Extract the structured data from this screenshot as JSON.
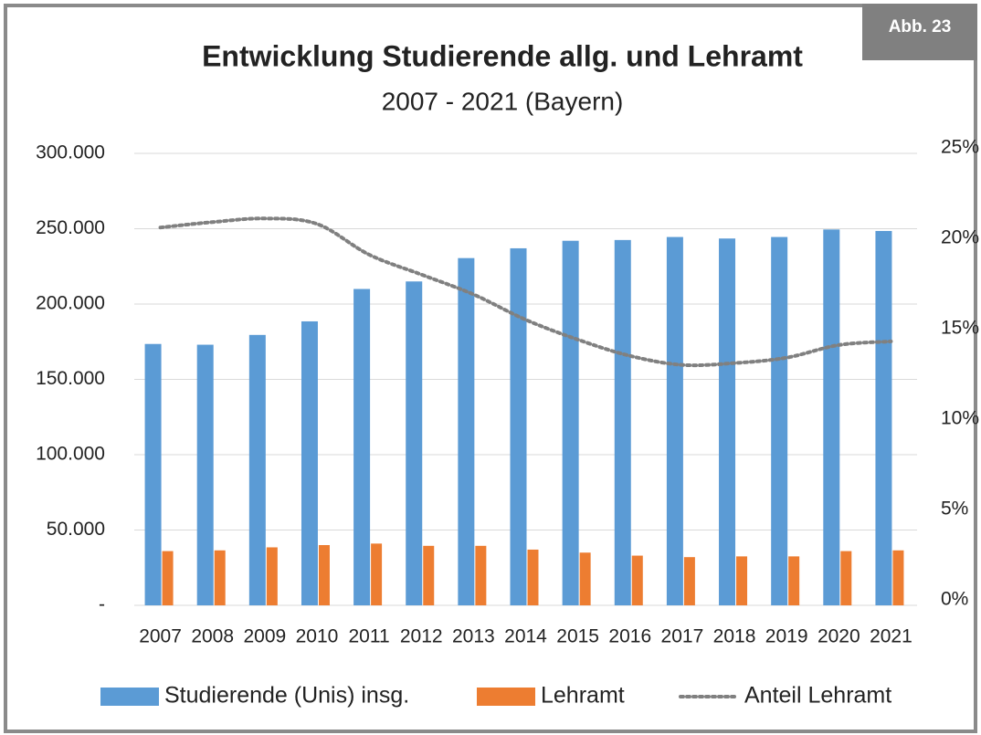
{
  "chart_data": {
    "type": "bar",
    "badge": "Abb. 23",
    "title": "Entwicklung Studierende allg. und Lehramt",
    "subtitle": "2007 - 2021 (Bayern)",
    "categories": [
      "2007",
      "2008",
      "2009",
      "2010",
      "2011",
      "2012",
      "2013",
      "2014",
      "2015",
      "2016",
      "2017",
      "2018",
      "2019",
      "2020",
      "2021"
    ],
    "series": [
      {
        "name": "Studierende (Unis) insg.",
        "color": "#5b9bd5",
        "type": "bar",
        "values": [
          173500,
          173000,
          179500,
          188500,
          210000,
          215000,
          230500,
          237000,
          242000,
          242500,
          244500,
          243500,
          244500,
          249500,
          248500
        ]
      },
      {
        "name": "Lehramt",
        "color": "#ed7d31",
        "type": "bar",
        "values": [
          36000,
          36500,
          38500,
          40000,
          41000,
          39500,
          39500,
          37000,
          35000,
          33000,
          32000,
          32500,
          32500,
          36000,
          36500
        ]
      },
      {
        "name": "Anteil Lehramt",
        "color": "#808080",
        "type": "line",
        "axis": "y2",
        "values": [
          20.9,
          21.2,
          21.4,
          21.1,
          19.4,
          18.3,
          17.2,
          15.8,
          14.7,
          13.8,
          13.3,
          13.4,
          13.7,
          14.4,
          14.6
        ]
      }
    ],
    "ylim": [
      0,
      300000
    ],
    "yticks": [
      {
        "value": 0,
        "label": "-"
      },
      {
        "value": 50000,
        "label": "50.000"
      },
      {
        "value": 100000,
        "label": "100.000"
      },
      {
        "value": 150000,
        "label": "150.000"
      },
      {
        "value": 200000,
        "label": "200.000"
      },
      {
        "value": 250000,
        "label": "250.000"
      },
      {
        "value": 300000,
        "label": "300.000"
      }
    ],
    "y2lim": [
      0,
      25
    ],
    "y2ticks": [
      {
        "value": 0,
        "label": "0%"
      },
      {
        "value": 5,
        "label": "5%"
      },
      {
        "value": 10,
        "label": "10%"
      },
      {
        "value": 15,
        "label": "15%"
      },
      {
        "value": 20,
        "label": "20%"
      },
      {
        "value": 25,
        "label": "25%"
      }
    ],
    "grid": true,
    "legend": "bottom"
  }
}
